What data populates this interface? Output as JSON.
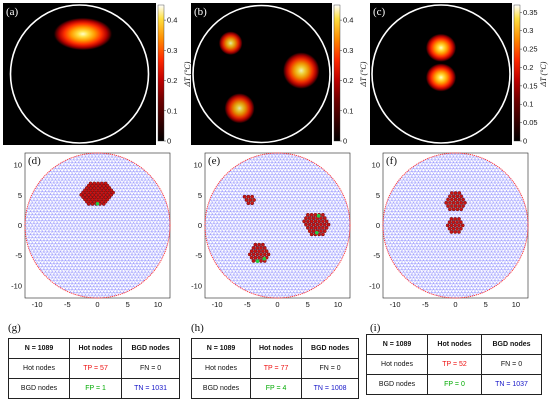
{
  "heatmaps": [
    {
      "label": "(a)",
      "colorbar_ticks": [
        "0",
        "0.1",
        "0.2",
        "0.3",
        "0.4"
      ],
      "colorbar_max": 0.45,
      "colorbar_label": "ΔT (°C)",
      "hotspots": [
        {
          "cx": 0.05,
          "cy": -0.58,
          "rx": 0.27,
          "ry": 0.15,
          "intensity": 0.45
        }
      ]
    },
    {
      "label": "(b)",
      "colorbar_ticks": [
        "0",
        "0.1",
        "0.2",
        "0.3",
        "0.4"
      ],
      "colorbar_max": 0.45,
      "colorbar_label": "ΔT (°C)",
      "hotspots": [
        {
          "cx": -0.45,
          "cy": -0.45,
          "rx": 0.11,
          "ry": 0.11,
          "intensity": 0.4
        },
        {
          "cx": 0.58,
          "cy": -0.05,
          "rx": 0.17,
          "ry": 0.17,
          "intensity": 0.42
        },
        {
          "cx": -0.32,
          "cy": 0.5,
          "rx": 0.14,
          "ry": 0.14,
          "intensity": 0.4
        }
      ]
    },
    {
      "label": "(c)",
      "colorbar_ticks": [
        "0",
        "0.05",
        "0.1",
        "0.15",
        "0.2",
        "0.25",
        "0.3",
        "0.35"
      ],
      "colorbar_max": 0.37,
      "colorbar_label": "ΔT (°C)",
      "hotspots": [
        {
          "cx": 0.0,
          "cy": -0.38,
          "rx": 0.14,
          "ry": 0.13,
          "intensity": 0.37
        },
        {
          "cx": 0.0,
          "cy": 0.05,
          "rx": 0.14,
          "ry": 0.13,
          "intensity": 0.37
        }
      ]
    }
  ],
  "meshes": [
    {
      "label": "(d)",
      "hot_regions": [
        {
          "type": "hex",
          "cx": 0,
          "cy": 5.3,
          "r": 3.0,
          "sy": 0.7
        }
      ],
      "fp_nodes": [
        [
          0,
          3.6
        ]
      ]
    },
    {
      "label": "(e)",
      "hot_regions": [
        {
          "type": "hex",
          "cx": -4.6,
          "cy": 4.3,
          "r": 1.15,
          "sy": 1
        },
        {
          "type": "hex",
          "cx": 6.3,
          "cy": 0.2,
          "r": 2.2,
          "sy": 1
        },
        {
          "type": "hex",
          "cx": -3.0,
          "cy": -4.5,
          "r": 1.9,
          "sy": 1
        }
      ],
      "fp_nodes": [
        [
          6.8,
          1.6
        ],
        [
          6.5,
          -1.2
        ],
        [
          -2.2,
          -5.5
        ],
        [
          -3.3,
          -5.9
        ]
      ]
    },
    {
      "label": "(f)",
      "hot_regions": [
        {
          "type": "hex",
          "cx": 0,
          "cy": 4.0,
          "r": 1.85,
          "sy": 1
        },
        {
          "type": "hex",
          "cx": 0,
          "cy": 0,
          "r": 1.6,
          "sy": 1
        }
      ],
      "fp_nodes": []
    }
  ],
  "mesh_axis": {
    "xticks": [
      "-10",
      "-5",
      "0",
      "5",
      "10"
    ],
    "yticks": [
      "10",
      "5",
      "0",
      "-5",
      "-10"
    ],
    "radius": 12
  },
  "tables": [
    {
      "label": "(g)",
      "header": [
        "N = 1089",
        "Hot nodes",
        "BGD nodes"
      ],
      "rows": [
        [
          "Hot nodes",
          "TP = 57",
          "FN = 0"
        ],
        [
          "BGD nodes",
          "FP = 1",
          "TN = 1031"
        ]
      ]
    },
    {
      "label": "(h)",
      "header": [
        "N = 1089",
        "Hot nodes",
        "BGD nodes"
      ],
      "rows": [
        [
          "Hot nodes",
          "TP = 77",
          "FN = 0"
        ],
        [
          "BGD nodes",
          "FP = 4",
          "TN = 1008"
        ]
      ]
    },
    {
      "label": "(i)",
      "header": [
        "N = 1089",
        "Hot nodes",
        "BGD nodes"
      ],
      "rows": [
        [
          "Hot nodes",
          "TP = 52",
          "FN = 0"
        ],
        [
          "BGD nodes",
          "FP = 0",
          "TN = 1037"
        ]
      ]
    }
  ],
  "colors": {
    "mesh_line": "#6a6aff",
    "mesh_node": "#2020c0",
    "boundary": "#ff3030",
    "hot_node": "#c81414",
    "fp_node": "#22cc44"
  }
}
